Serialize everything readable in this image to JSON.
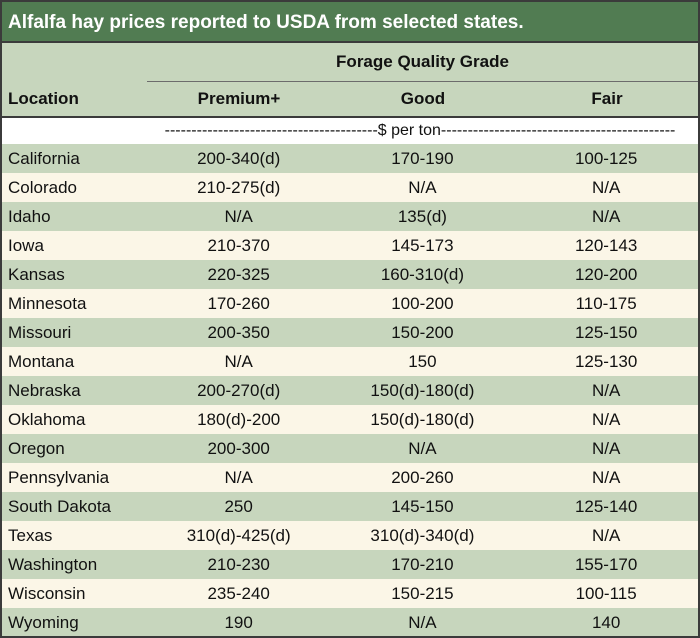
{
  "title": "Alfalfa hay prices reported to USDA from selected states.",
  "header": {
    "group_label": "Forage Quality Grade",
    "location_label": "Location",
    "columns": [
      "Premium+",
      "Good",
      "Fair"
    ]
  },
  "units_row": "----------------------------------------$ per ton--------------------------------------------",
  "rows": [
    {
      "location": "California",
      "premium": "200-340(d)",
      "good": "170-190",
      "fair": "100-125"
    },
    {
      "location": "Colorado",
      "premium": "210-275(d)",
      "good": "N/A",
      "fair": "N/A"
    },
    {
      "location": "Idaho",
      "premium": "N/A",
      "good": "135(d)",
      "fair": "N/A"
    },
    {
      "location": "Iowa",
      "premium": "210-370",
      "good": "145-173",
      "fair": "120-143"
    },
    {
      "location": "Kansas",
      "premium": "220-325",
      "good": "160-310(d)",
      "fair": "120-200"
    },
    {
      "location": "Minnesota",
      "premium": "170-260",
      "good": "100-200",
      "fair": "110-175"
    },
    {
      "location": "Missouri",
      "premium": "200-350",
      "good": "150-200",
      "fair": "125-150"
    },
    {
      "location": "Montana",
      "premium": "N/A",
      "good": "150",
      "fair": "125-130"
    },
    {
      "location": "Nebraska",
      "premium": "200-270(d)",
      "good": "150(d)-180(d)",
      "fair": "N/A"
    },
    {
      "location": "Oklahoma",
      "premium": "180(d)-200",
      "good": "150(d)-180(d)",
      "fair": "N/A"
    },
    {
      "location": "Oregon",
      "premium": "200-300",
      "good": "N/A",
      "fair": "N/A"
    },
    {
      "location": "Pennsylvania",
      "premium": "N/A",
      "good": "200-260",
      "fair": "N/A"
    },
    {
      "location": "South Dakota",
      "premium": "250",
      "good": "145-150",
      "fair": "125-140"
    },
    {
      "location": "Texas",
      "premium": "310(d)-425(d)",
      "good": "310(d)-340(d)",
      "fair": "N/A"
    },
    {
      "location": "Washington",
      "premium": "210-230",
      "good": "170-210",
      "fair": "155-170"
    },
    {
      "location": "Wisconsin",
      "premium": "235-240",
      "good": "150-215",
      "fair": "100-115"
    },
    {
      "location": "Wyoming",
      "premium": "190",
      "good": "N/A",
      "fair": "140"
    }
  ],
  "colors": {
    "title_bg": "#517c52",
    "band_green": "#c7d6bd",
    "band_cream": "#fbf6e7",
    "border": "#3b3b3b"
  }
}
